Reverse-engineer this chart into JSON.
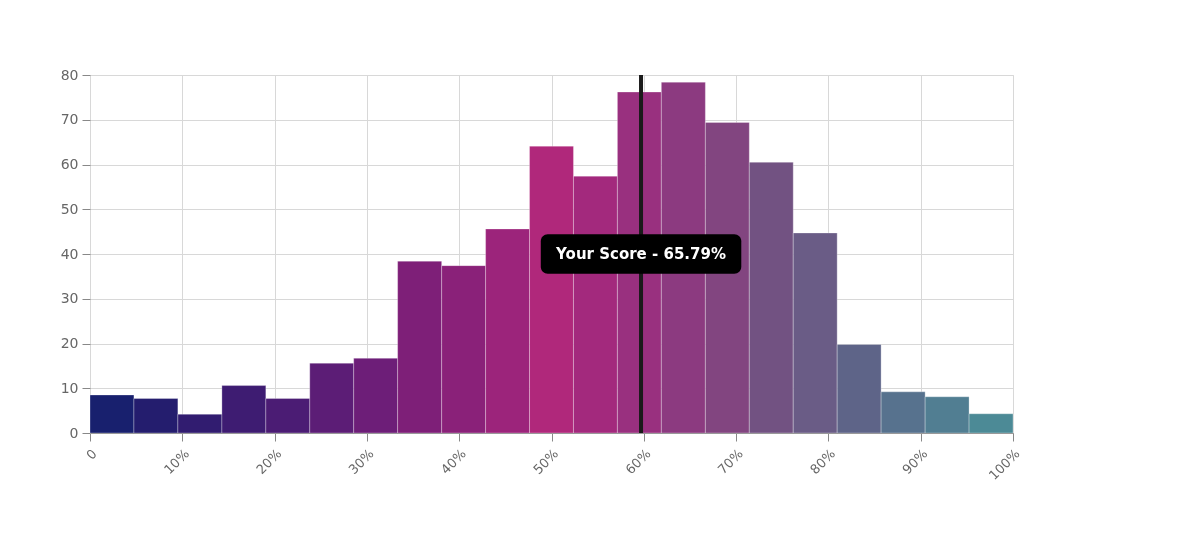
{
  "chart_data": {
    "type": "histogram",
    "bins": [
      0,
      4.76,
      9.52,
      14.29,
      19.05,
      23.81,
      28.57,
      33.33,
      38.1,
      42.86,
      47.62,
      52.38,
      57.14,
      61.9,
      66.67,
      71.43,
      76.19,
      80.95,
      85.71,
      90.48,
      95.24,
      100
    ],
    "values": [
      8.5,
      7.7,
      4.2,
      10.6,
      7.7,
      15.6,
      16.7,
      38.4,
      37.4,
      45.6,
      64.1,
      57.4,
      76.2,
      78.4,
      69.4,
      60.5,
      44.7,
      19.8,
      9.2,
      8.1,
      4.3
    ],
    "colors": [
      "#18206e",
      "#241d6e",
      "#311c70",
      "#3e1c72",
      "#4b1c74",
      "#5c1d76",
      "#6d1e78",
      "#7e1f78",
      "#8a2179",
      "#9c247b",
      "#b0287b",
      "#a3297d",
      "#99307f",
      "#8c3a80",
      "#824580",
      "#725282",
      "#6a5c86",
      "#5e6488",
      "#57728e",
      "#517e92",
      "#4c8a96"
    ],
    "xlim": [
      0,
      100
    ],
    "xticks": [
      0,
      {
        "value": 10,
        "label": "10%"
      },
      {
        "value": 20,
        "label": "20%"
      },
      {
        "value": 30,
        "label": "30%"
      },
      {
        "value": 40,
        "label": "40%"
      },
      {
        "value": 50,
        "label": "50%"
      },
      {
        "value": 60,
        "label": "60%"
      },
      {
        "value": 70,
        "label": "70%"
      },
      {
        "value": 80,
        "label": "80%"
      },
      {
        "value": 90,
        "label": "90%"
      },
      {
        "value": 100,
        "label": "100%"
      }
    ],
    "ylim": [
      0,
      80
    ],
    "yticks": [
      0,
      10,
      20,
      30,
      40,
      50,
      60,
      70,
      80
    ],
    "grid": true,
    "ref_lines": [
      {
        "axis": "x",
        "value": 59.7,
        "label": "Your Score - 65.79%",
        "color": "#1a1a1a"
      }
    ]
  }
}
